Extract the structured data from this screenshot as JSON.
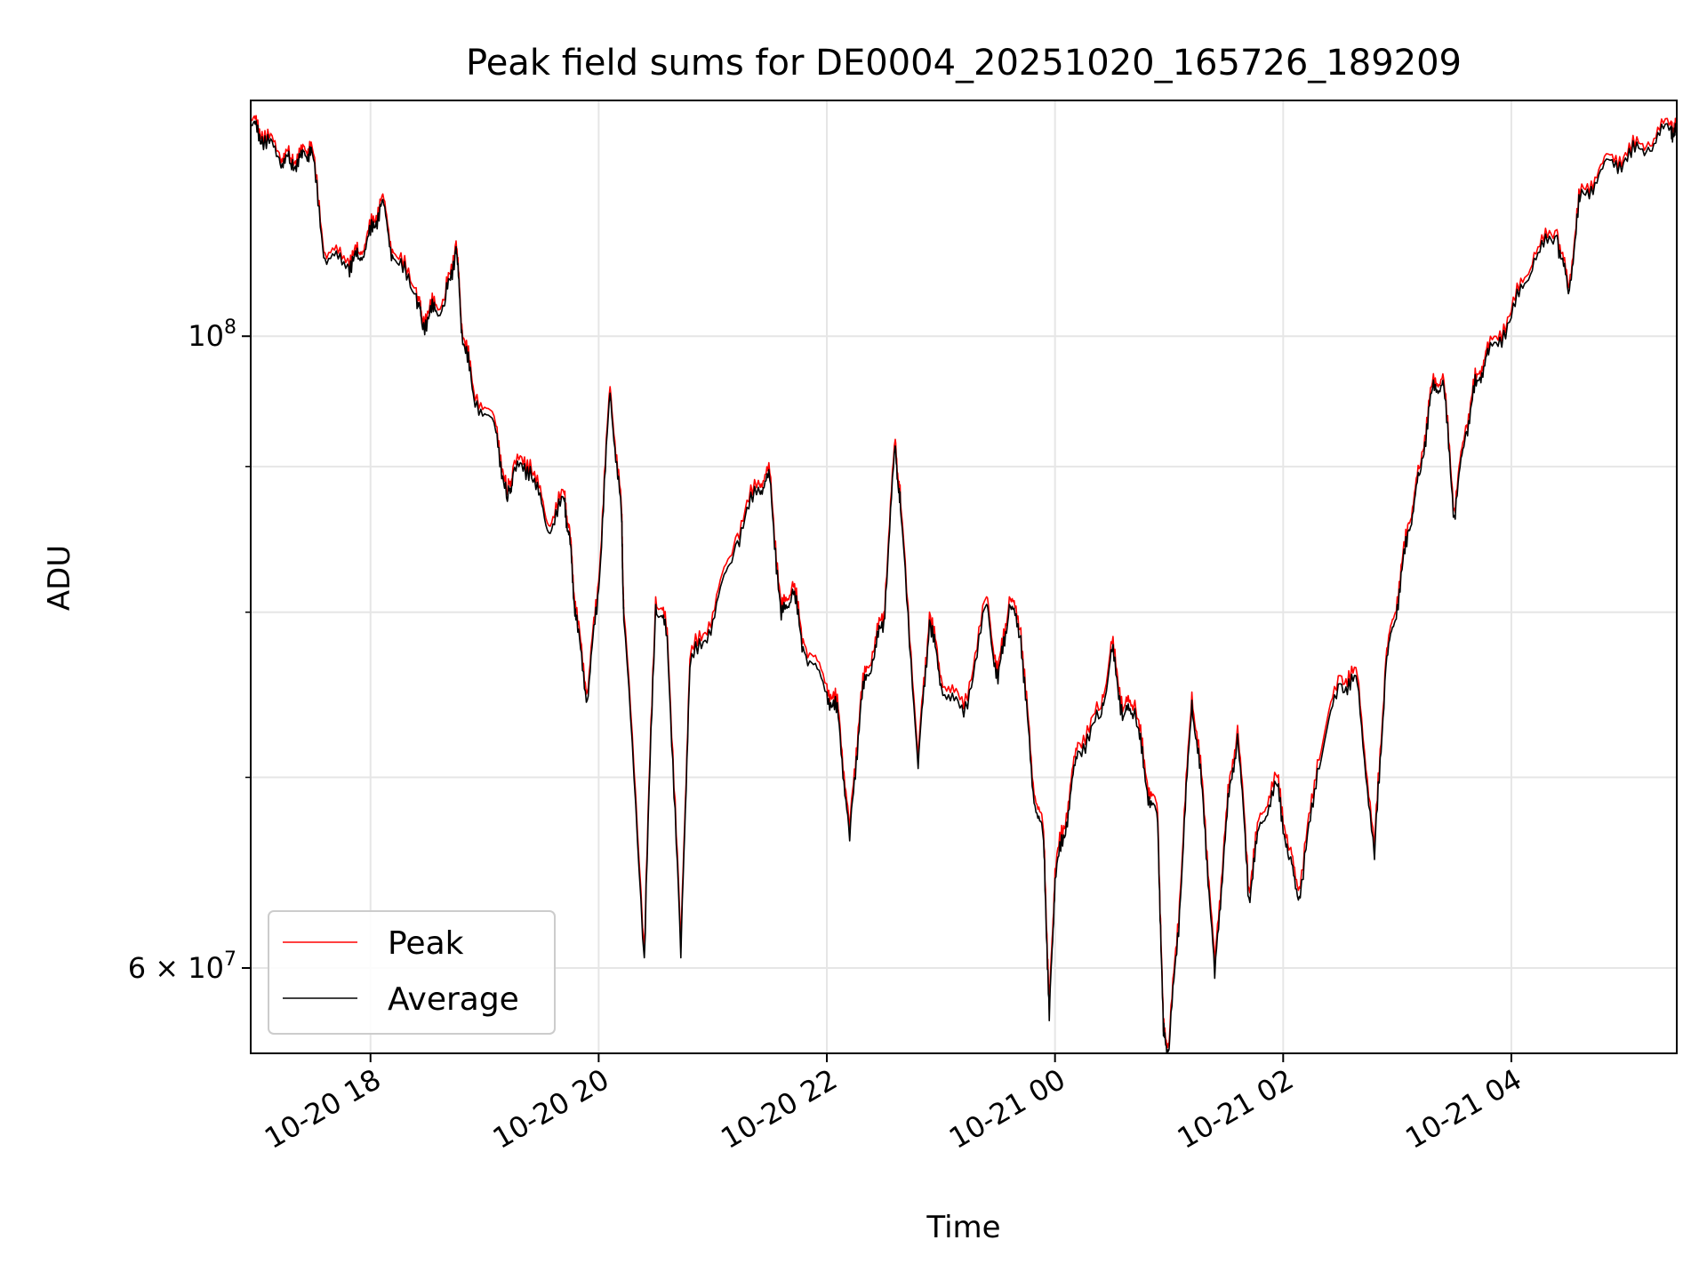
{
  "chart_data": {
    "type": "line",
    "title": "Peak field sums for DE0004_20251020_165726_189209",
    "xlabel": "Time",
    "ylabel": "ADU",
    "yscale": "log",
    "xlim_hours": [
      16.95,
      29.45
    ],
    "ylim": [
      56000000,
      121000000
    ],
    "x_tick_labels": [
      {
        "hour": 18,
        "label": "10-20 18"
      },
      {
        "hour": 20,
        "label": "10-20 20"
      },
      {
        "hour": 22,
        "label": "10-20 22"
      },
      {
        "hour": 24,
        "label": "10-21 00"
      },
      {
        "hour": 26,
        "label": "10-21 02"
      },
      {
        "hour": 28,
        "label": "10-21 04"
      }
    ],
    "y_tick_labels": [
      {
        "value": 100000000,
        "base": "10",
        "exp": "8",
        "prefix": ""
      },
      {
        "value": 60000000,
        "base": "10",
        "exp": "7",
        "prefix": "6 × "
      }
    ],
    "y_minor_ticks": [
      70000000,
      80000000,
      90000000
    ],
    "grid": true,
    "legend_position": "lower-left",
    "series": [
      {
        "name": "Peak",
        "color": "#ff0000",
        "hours": [
          16.96,
          17.05,
          17.2,
          17.3,
          17.4,
          17.48,
          17.6,
          17.8,
          17.9,
          18.0,
          18.1,
          18.2,
          18.4,
          18.45,
          18.55,
          18.65,
          18.75,
          18.8,
          18.9,
          19.1,
          19.2,
          19.25,
          19.4,
          19.55,
          19.7,
          19.75,
          19.8,
          19.9,
          20.0,
          20.1,
          20.2,
          20.22,
          20.4,
          20.5,
          20.6,
          20.72,
          20.8,
          21.0,
          21.2,
          21.4,
          21.5,
          21.6,
          21.7,
          21.8,
          22.0,
          22.1,
          22.2,
          22.3,
          22.4,
          22.5,
          22.6,
          22.65,
          22.8,
          22.9,
          23.0,
          23.2,
          23.4,
          23.5,
          23.6,
          23.7,
          23.8,
          23.9,
          23.95,
          24.0,
          24.1,
          24.2,
          24.4,
          24.5,
          24.6,
          24.7,
          24.8,
          24.9,
          24.95,
          25.0,
          25.1,
          25.2,
          25.3,
          25.4,
          25.5,
          25.6,
          25.7,
          25.8,
          25.95,
          26.05,
          26.15,
          26.3,
          26.5,
          26.65,
          26.8,
          26.9,
          27.0,
          27.1,
          27.2,
          27.3,
          27.4,
          27.5,
          27.6,
          27.7,
          27.8,
          28.0,
          28.2,
          28.4,
          28.5,
          28.6,
          28.8,
          29.0,
          29.2,
          29.4,
          29.45
        ],
        "values": [
          119000000,
          118000000,
          116000000,
          115500000,
          116000000,
          117000000,
          107000000,
          106500000,
          107000000,
          109000000,
          112000000,
          107000000,
          104000000,
          101500000,
          102500000,
          103000000,
          108000000,
          101000000,
          96000000,
          93000000,
          88000000,
          90000000,
          90500000,
          86000000,
          88000000,
          85000000,
          80000000,
          75000000,
          82000000,
          96000000,
          87000000,
          80000000,
          61000000,
          81000000,
          79000000,
          61000000,
          77000000,
          80000000,
          85000000,
          89000000,
          89500000,
          80000000,
          82000000,
          78000000,
          75500000,
          74000000,
          67000000,
          75000000,
          77500000,
          80000000,
          92000000,
          87000000,
          71000000,
          80000000,
          76000000,
          74000000,
          81000000,
          76000000,
          81000000,
          79000000,
          70000000,
          67000000,
          58000000,
          65000000,
          68000000,
          72000000,
          74000000,
          78000000,
          74000000,
          74500000,
          70000000,
          68000000,
          57000000,
          56500000,
          64000000,
          75000000,
          69000000,
          60000000,
          68000000,
          73000000,
          64000000,
          68000000,
          70000000,
          66000000,
          64000000,
          71000000,
          76000000,
          76000000,
          66000000,
          77000000,
          81000000,
          86000000,
          90000000,
          96000000,
          97000000,
          87000000,
          93000000,
          97000000,
          99000000,
          102000000,
          107000000,
          109000000,
          104000000,
          112000000,
          115000000,
          116000000,
          117000000,
          119000000,
          118000000
        ]
      },
      {
        "name": "Average",
        "color": "#000000",
        "hours": [
          16.96,
          17.05,
          17.2,
          17.3,
          17.4,
          17.48,
          17.6,
          17.8,
          17.9,
          18.0,
          18.1,
          18.2,
          18.4,
          18.45,
          18.55,
          18.65,
          18.75,
          18.8,
          18.9,
          19.1,
          19.2,
          19.25,
          19.4,
          19.55,
          19.7,
          19.75,
          19.8,
          19.9,
          20.0,
          20.1,
          20.2,
          20.22,
          20.4,
          20.5,
          20.6,
          20.72,
          20.8,
          21.0,
          21.2,
          21.4,
          21.5,
          21.6,
          21.7,
          21.8,
          22.0,
          22.1,
          22.2,
          22.3,
          22.4,
          22.5,
          22.6,
          22.65,
          22.8,
          22.9,
          23.0,
          23.2,
          23.4,
          23.5,
          23.6,
          23.7,
          23.8,
          23.9,
          23.95,
          24.0,
          24.1,
          24.2,
          24.4,
          24.5,
          24.6,
          24.7,
          24.8,
          24.9,
          24.95,
          25.0,
          25.1,
          25.2,
          25.3,
          25.4,
          25.5,
          25.6,
          25.7,
          25.8,
          25.95,
          26.05,
          26.15,
          26.3,
          26.5,
          26.65,
          26.8,
          26.9,
          27.0,
          27.1,
          27.2,
          27.3,
          27.4,
          27.5,
          27.6,
          27.7,
          27.8,
          28.0,
          28.2,
          28.4,
          28.5,
          28.6,
          28.8,
          29.0,
          29.2,
          29.4,
          29.45
        ],
        "values": [
          118500000,
          117500000,
          115500000,
          115000000,
          115500000,
          116500000,
          106500000,
          106000000,
          106500000,
          108500000,
          111500000,
          106500000,
          103500000,
          101000000,
          102000000,
          102500000,
          107500000,
          100500000,
          95500000,
          92500000,
          87500000,
          89500000,
          90000000,
          85500000,
          87500000,
          84500000,
          79500000,
          74500000,
          81500000,
          95500000,
          86500000,
          79500000,
          60500000,
          80500000,
          78500000,
          60500000,
          76500000,
          79500000,
          84500000,
          88500000,
          89000000,
          79500000,
          81500000,
          77500000,
          75000000,
          73500000,
          66500000,
          74500000,
          77000000,
          79500000,
          91500000,
          86500000,
          70500000,
          79500000,
          75500000,
          73500000,
          80500000,
          75500000,
          80500000,
          78500000,
          69500000,
          66500000,
          57500000,
          64500000,
          67500000,
          71500000,
          73500000,
          77500000,
          73500000,
          74000000,
          69500000,
          67500000,
          56800000,
          56200000,
          63500000,
          74500000,
          68500000,
          59500000,
          67500000,
          72500000,
          63500000,
          67500000,
          69500000,
          65500000,
          63500000,
          70500000,
          75500000,
          75500000,
          65500000,
          76500000,
          80500000,
          85500000,
          89500000,
          95500000,
          96500000,
          86500000,
          92500000,
          96500000,
          98500000,
          101500000,
          106500000,
          108500000,
          103500000,
          111500000,
          114500000,
          115500000,
          116500000,
          118500000,
          117500000
        ]
      }
    ]
  }
}
